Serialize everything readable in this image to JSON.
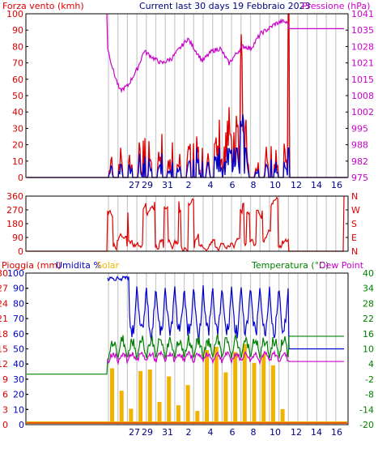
{
  "header": {
    "left_label": "Forza vento (kmh)",
    "title": "Current last 30 days 19 Febbraio 2023",
    "right_label": "Pressione (hPa)"
  },
  "bottom_header": {
    "rain_label": "Pioggia (mm)",
    "humidity_label": "Umidita %",
    "solar_label": "Solar",
    "temp_label": "Temperatura (°C)",
    "dew_label": "Dew Point"
  },
  "x_tick_labels": [
    "27",
    "29",
    "31",
    "2",
    "4",
    "6",
    "8",
    "10",
    "12",
    "14",
    "16"
  ],
  "colors": {
    "wind_avg": "#0000cc",
    "wind_gust": "#dd0000",
    "pressure": "#cc00cc",
    "direction": "#dd0000",
    "humidity": "#0000cc",
    "temperature": "#008000",
    "dew_point": "#cc00cc",
    "rain": "#dd0000",
    "solar": "#f0b400",
    "title_text": "#000080",
    "right_text": "#cc00cc",
    "grid": "#c8c8c8"
  },
  "chart_data": [
    {
      "type": "line",
      "name": "wind_pressure",
      "left_axis": {
        "label": "Forza vento (kmh)",
        "ylim": [
          0,
          100
        ],
        "ticks": [
          "100",
          "90",
          "80",
          "70",
          "60",
          "50",
          "40",
          "30",
          "20",
          "10",
          "0"
        ]
      },
      "right_axis": {
        "label": "Pressione (hPa)",
        "ylim": [
          975,
          1041
        ],
        "ticks": [
          "1041",
          "1035",
          "1028",
          "1021",
          "1015",
          "1008",
          "1002",
          "995",
          "988",
          "982",
          "975"
        ]
      },
      "series": [
        {
          "name": "Forza vento (kmh)",
          "approx_values": {
            "quiet_period": 0,
            "typical_daily_max": [
              5,
              20
            ],
            "peak": 47
          }
        },
        {
          "name": "Pressione (hPa)",
          "approx_values": {
            "start": 1027,
            "min": 1010,
            "mid": 1031,
            "late": 1038,
            "end": 1035
          }
        }
      ]
    },
    {
      "type": "line",
      "name": "direction",
      "left_axis": {
        "ylim": [
          0,
          360
        ],
        "ticks": [
          "360",
          "270",
          "180",
          "90",
          "0"
        ]
      },
      "right_axis": {
        "ticks": [
          "N",
          "W",
          "S",
          "E",
          "N"
        ]
      }
    },
    {
      "type": "line",
      "name": "rain_humidity_temp",
      "left_axis": {
        "label": "Pioggia (mm)  Umidita %  Solar",
        "rain_ticks": [
          "30",
          "27",
          "24",
          "21",
          "18",
          "15",
          "12",
          "9",
          "6",
          "3",
          "0"
        ],
        "humidity_ticks": [
          "100",
          "90",
          "80",
          "70",
          "60",
          "50",
          "40",
          "30",
          "20",
          "10",
          "0"
        ]
      },
      "right_axis": {
        "label": "Temperatura (°C)  Dew Point",
        "ylim": [
          -20,
          40
        ],
        "ticks": [
          "40",
          "34",
          "28",
          "22",
          "16",
          "10",
          "4",
          "-2",
          "-8",
          "-14",
          "-20"
        ]
      },
      "series": [
        {
          "name": "Umidita %",
          "approx_values": {
            "daily_range": [
              60,
              98
            ],
            "end_flat": 50
          }
        },
        {
          "name": "Temperatura (°C)",
          "approx_values": {
            "before_gap": 0,
            "daily_range": [
              6,
              15
            ],
            "end_flat": 15
          }
        },
        {
          "name": "Dew Point",
          "approx_values": {
            "daily_range": [
              4,
              9
            ],
            "end_flat": 5
          }
        },
        {
          "name": "Solar"
        },
        {
          "name": "Pioggia (mm)",
          "approx_values": {
            "total": 0
          }
        }
      ]
    }
  ]
}
